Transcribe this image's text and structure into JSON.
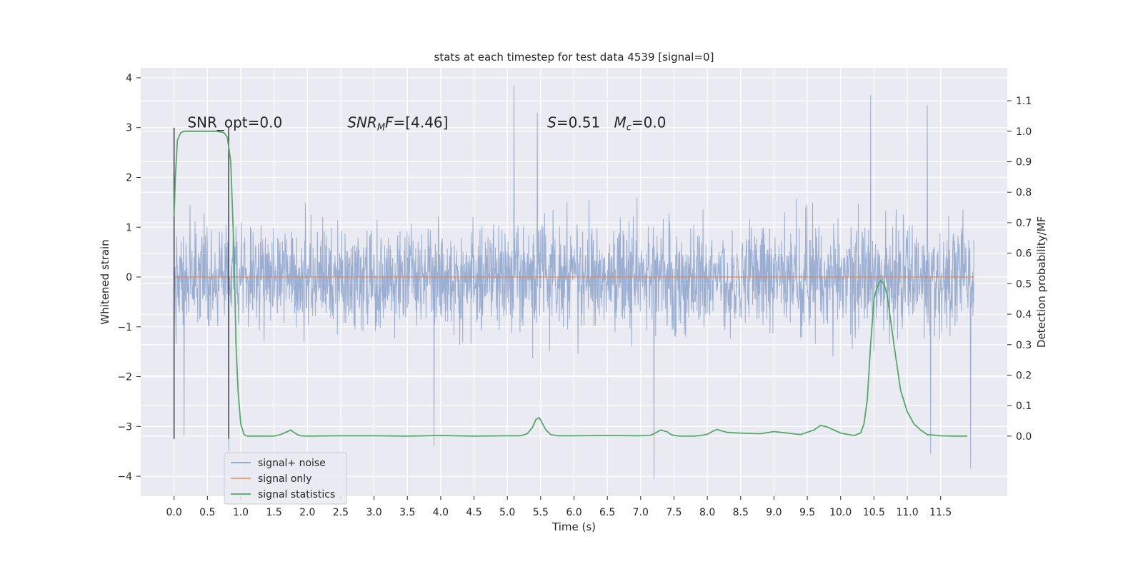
{
  "chart_data": {
    "type": "line",
    "title": "stats at each timestep for test data 4539 [signal=0]",
    "xlabel": "Time (s)",
    "ylabel": "Whitened strain",
    "y2label": "Detection probability/MF",
    "xlim": [
      -0.5,
      12.5
    ],
    "ylim": [
      -4.4,
      4.2
    ],
    "y2lim": [
      -0.197,
      1.208
    ],
    "x_ticks": [
      "0.0",
      "0.5",
      "1.0",
      "1.5",
      "2.0",
      "2.5",
      "3.0",
      "3.5",
      "4.0",
      "4.5",
      "5.0",
      "5.5",
      "6.0",
      "6.5",
      "7.0",
      "7.5",
      "8.0",
      "8.5",
      "9.0",
      "9.5",
      "10.0",
      "10.5",
      "11.0",
      "11.5"
    ],
    "y_ticks": [
      "4",
      "3",
      "2",
      "1",
      "0",
      "−1",
      "−2",
      "−3",
      "−4"
    ],
    "y2_ticks": [
      "1.1",
      "1.0",
      "0.9",
      "0.8",
      "0.7",
      "0.6",
      "0.5",
      "0.4",
      "0.3",
      "0.2",
      "0.1",
      "0.0"
    ],
    "grid": true,
    "legend_position": "lower-left",
    "series": [
      {
        "name": "signal+ noise",
        "color": "#4c72b0",
        "axis": "left",
        "x_range": [
          0.0,
          12.0
        ],
        "typical_envelope": [
          -1.8,
          2.0
        ],
        "peak_values": [
          {
            "x": 0.15,
            "y": -3.2
          },
          {
            "x": 0.82,
            "y": -3.5
          },
          {
            "x": 3.9,
            "y": -3.4
          },
          {
            "x": 5.1,
            "y": 3.85
          },
          {
            "x": 5.45,
            "y": 3.3
          },
          {
            "x": 7.2,
            "y": -4.05
          },
          {
            "x": 10.45,
            "y": 3.65
          },
          {
            "x": 11.3,
            "y": 3.45
          },
          {
            "x": 11.35,
            "y": -3.55
          },
          {
            "x": 11.95,
            "y": -3.85
          }
        ]
      },
      {
        "name": "signal only",
        "color": "#dd8452",
        "axis": "left",
        "x": [
          0.0,
          12.0
        ],
        "y": [
          0.0,
          0.0
        ]
      },
      {
        "name": "signal statistics",
        "color": "#55a868",
        "axis": "right",
        "x": [
          0.0,
          0.02,
          0.05,
          0.1,
          0.15,
          0.2,
          0.3,
          0.5,
          0.65,
          0.75,
          0.8,
          0.85,
          0.9,
          0.93,
          0.96,
          1.0,
          1.05,
          1.1,
          1.2,
          1.5,
          1.6,
          1.7,
          1.75,
          1.8,
          1.85,
          1.9,
          2.0,
          2.5,
          3.0,
          3.5,
          4.0,
          4.5,
          5.0,
          5.2,
          5.3,
          5.38,
          5.43,
          5.48,
          5.53,
          5.58,
          5.65,
          5.75,
          6.0,
          6.5,
          7.0,
          7.15,
          7.2,
          7.3,
          7.4,
          7.45,
          7.5,
          7.6,
          7.8,
          7.9,
          8.0,
          8.1,
          8.15,
          8.2,
          8.3,
          8.5,
          8.8,
          9.0,
          9.2,
          9.4,
          9.6,
          9.7,
          9.8,
          10.0,
          10.2,
          10.3,
          10.35,
          10.4,
          10.45,
          10.5,
          10.55,
          10.6,
          10.65,
          10.7,
          10.75,
          10.8,
          10.9,
          11.0,
          11.1,
          11.2,
          11.3,
          11.5,
          11.7,
          11.9
        ],
        "y": [
          0.72,
          0.85,
          0.97,
          0.995,
          1.0,
          1.0,
          1.0,
          1.0,
          1.0,
          0.995,
          0.98,
          0.9,
          0.6,
          0.3,
          0.15,
          0.04,
          0.005,
          0.0,
          0.0,
          0.0,
          0.005,
          0.015,
          0.02,
          0.012,
          0.005,
          0.001,
          0.0,
          0.001,
          0.001,
          0.0,
          0.002,
          0.0,
          0.001,
          0.001,
          0.008,
          0.03,
          0.055,
          0.06,
          0.04,
          0.02,
          0.005,
          0.001,
          0.001,
          0.002,
          0.001,
          0.003,
          0.008,
          0.02,
          0.014,
          0.006,
          0.002,
          0.0,
          0.0,
          0.002,
          0.006,
          0.018,
          0.022,
          0.018,
          0.012,
          0.01,
          0.008,
          0.015,
          0.01,
          0.005,
          0.02,
          0.035,
          0.03,
          0.01,
          0.002,
          0.01,
          0.04,
          0.12,
          0.3,
          0.45,
          0.49,
          0.51,
          0.5,
          0.46,
          0.38,
          0.3,
          0.15,
          0.08,
          0.04,
          0.02,
          0.005,
          0.001,
          0.0,
          0.0
        ]
      }
    ],
    "vertical_markers": [
      0.0,
      0.82
    ],
    "annotations": [
      {
        "text": "SNR_opt=0.0",
        "x": 0.2,
        "y": 3.0
      },
      {
        "parts": [
          [
            "SNR",
            "i"
          ],
          [
            "M",
            "sub"
          ],
          [
            "F=[4.46]",
            "i-partial"
          ]
        ],
        "plain": "SNR_MF=[4.46]",
        "x": 2.6,
        "y": 3.0
      },
      {
        "parts": [
          [
            "S",
            "i"
          ],
          [
            "=0.51",
            "n"
          ]
        ],
        "plain": "S=0.51",
        "x": 5.6,
        "y": 3.0
      },
      {
        "parts": [
          [
            "M",
            "i"
          ],
          [
            "c",
            "sub"
          ],
          [
            "=0.0",
            "n"
          ]
        ],
        "plain": "M_c=0.0",
        "x": 6.6,
        "y": 3.0
      }
    ]
  }
}
